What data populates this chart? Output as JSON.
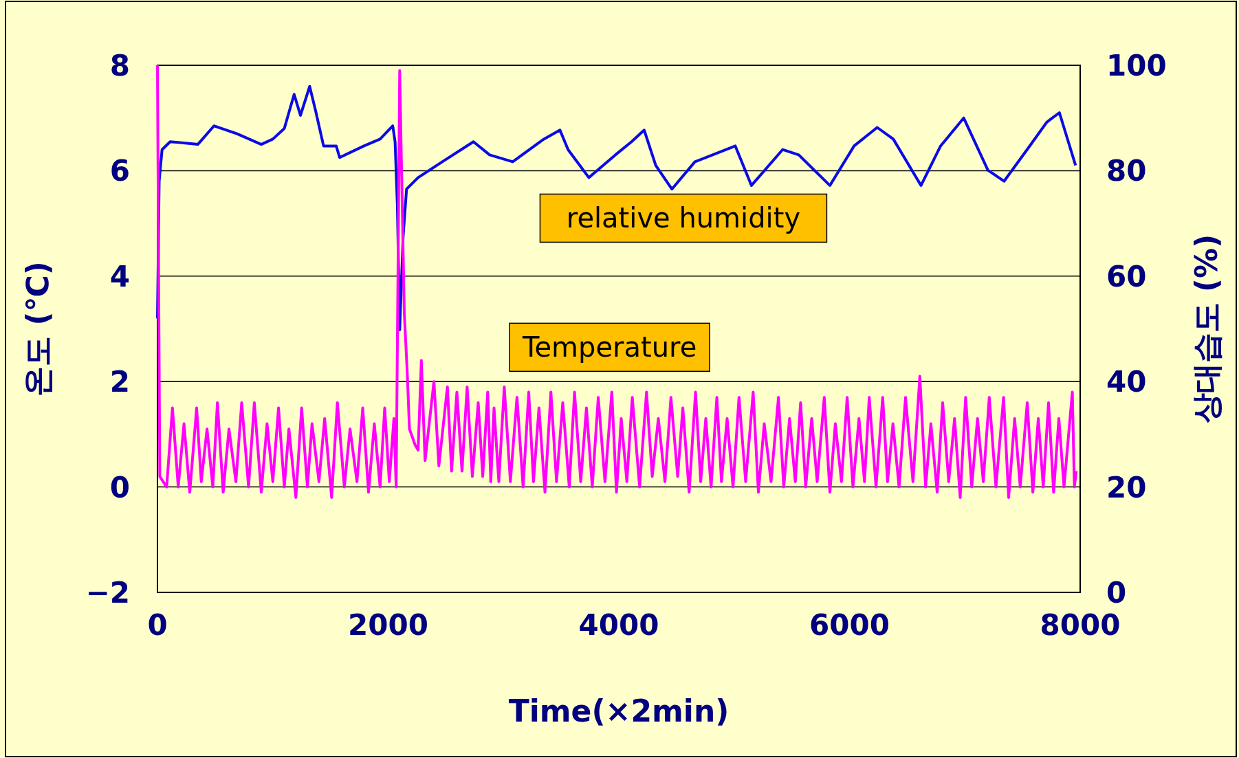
{
  "chart_data": {
    "type": "line",
    "xlabel": "Time(×2min)",
    "ylabel": "온도 (℃)",
    "y2label": "상대습도 (%)",
    "xlim": [
      0,
      8000
    ],
    "xticks": [
      0,
      2000,
      4000,
      6000,
      8000
    ],
    "ylim": [
      -2,
      8
    ],
    "yticks": [
      {
        "value": -2,
        "label": "−2"
      },
      0,
      2,
      4,
      6,
      8
    ],
    "y2lim": [
      0,
      100
    ],
    "y2ticks": [
      0,
      20,
      40,
      60,
      80,
      100
    ],
    "grid": "y",
    "series": [
      {
        "name": "relative humidity",
        "color": "#0a0ae6",
        "axis": "y2",
        "x": [
          0,
          15,
          40,
          110,
          350,
          490,
          690,
          900,
          1000,
          1100,
          1185,
          1240,
          1320,
          1370,
          1440,
          1550,
          1580,
          1790,
          1930,
          2040,
          2060,
          2080,
          2100,
          2130,
          2160,
          2260,
          2470,
          2740,
          2880,
          3080,
          3350,
          3490,
          3560,
          3740,
          3970,
          4110,
          4220,
          4320,
          4460,
          4660,
          5010,
          5150,
          5420,
          5560,
          5830,
          6040,
          6240,
          6380,
          6620,
          6790,
          6990,
          7200,
          7340,
          7540,
          7710,
          7820,
          7960
        ],
        "values": [
          52,
          78,
          84,
          85.5,
          85,
          88.5,
          87,
          85,
          86,
          88,
          94.5,
          90.5,
          96,
          91.5,
          84.7,
          84.7,
          82.5,
          84.7,
          86,
          88.5,
          85.5,
          73.5,
          49.8,
          67.5,
          76.5,
          78.7,
          81.7,
          85.5,
          83,
          81.7,
          86,
          87.7,
          84,
          78.7,
          83,
          85.5,
          87.7,
          81,
          76.5,
          81.7,
          84.7,
          77.2,
          84,
          83,
          77.2,
          84.7,
          88.2,
          86,
          77.2,
          84.7,
          90,
          80.1,
          78,
          84,
          89.2,
          91,
          81
        ]
      },
      {
        "name": "Temperature",
        "color": "#ff00ff",
        "x": [
          0,
          20,
          80,
          130,
          180,
          230,
          280,
          340,
          380,
          430,
          480,
          520,
          570,
          620,
          680,
          730,
          790,
          840,
          900,
          950,
          1000,
          1050,
          1100,
          1140,
          1200,
          1250,
          1300,
          1340,
          1400,
          1450,
          1510,
          1560,
          1620,
          1670,
          1730,
          1780,
          1830,
          1880,
          1930,
          1970,
          2010,
          2050,
          2070,
          2100,
          2140,
          2165,
          2185,
          2233,
          2260,
          2288,
          2320,
          2397,
          2440,
          2514,
          2550,
          2596,
          2640,
          2685,
          2730,
          2781,
          2820,
          2863,
          2890,
          2918,
          2960,
          3007,
          3060,
          3117,
          3170,
          3219,
          3260,
          3308,
          3360,
          3411,
          3460,
          3514,
          3570,
          3616,
          3670,
          3719,
          3770,
          3822,
          3880,
          3939,
          3980,
          4021,
          4070,
          4117,
          4180,
          4240,
          4290,
          4343,
          4400,
          4452,
          4510,
          4555,
          4610,
          4665,
          4710,
          4754,
          4800,
          4850,
          4890,
          4939,
          4990,
          5042,
          5100,
          5165,
          5210,
          5261,
          5320,
          5384,
          5430,
          5480,
          5530,
          5576,
          5620,
          5672,
          5720,
          5781,
          5830,
          5877,
          5930,
          5980,
          6030,
          6082,
          6130,
          6171,
          6230,
          6288,
          6330,
          6377,
          6430,
          6486,
          6550,
          6610,
          6660,
          6706,
          6760,
          6808,
          6860,
          6911,
          6960,
          7007,
          7060,
          7110,
          7160,
          7212,
          7270,
          7336,
          7380,
          7432,
          7480,
          7541,
          7590,
          7637,
          7680,
          7726,
          7770,
          7815,
          7860,
          7932,
          7950,
          7966
        ],
        "values": [
          8.0,
          0.2,
          0.0,
          1.5,
          0.0,
          1.2,
          -0.1,
          1.5,
          0.1,
          1.1,
          0.0,
          1.6,
          -0.1,
          1.1,
          0.1,
          1.6,
          0.0,
          1.6,
          -0.1,
          1.2,
          0.1,
          1.5,
          0.0,
          1.1,
          -0.2,
          1.5,
          0.0,
          1.2,
          0.1,
          1.3,
          -0.2,
          1.6,
          0.0,
          1.1,
          0.1,
          1.5,
          -0.1,
          1.2,
          0.0,
          1.5,
          0.1,
          1.3,
          0.0,
          7.9,
          3.3,
          2.2,
          1.1,
          0.8,
          0.7,
          2.4,
          0.5,
          2.0,
          0.4,
          1.9,
          0.3,
          1.8,
          0.3,
          1.9,
          0.2,
          1.6,
          0.2,
          1.8,
          0.1,
          1.5,
          0.1,
          1.9,
          0.1,
          1.7,
          0.0,
          1.8,
          0.1,
          1.5,
          -0.1,
          1.8,
          0.1,
          1.6,
          0.0,
          1.8,
          0.1,
          1.5,
          0.0,
          1.7,
          0.1,
          1.8,
          -0.1,
          1.3,
          0.1,
          1.7,
          0.0,
          1.8,
          0.2,
          1.3,
          0.1,
          1.7,
          0.2,
          1.5,
          -0.1,
          1.8,
          0.1,
          1.3,
          0.0,
          1.7,
          0.1,
          1.3,
          0.0,
          1.7,
          0.1,
          1.8,
          -0.1,
          1.2,
          0.1,
          1.7,
          0.0,
          1.3,
          0.1,
          1.6,
          0.0,
          1.3,
          0.1,
          1.7,
          -0.1,
          1.2,
          0.1,
          1.7,
          0.0,
          1.3,
          0.1,
          1.7,
          0.0,
          1.7,
          0.1,
          1.2,
          0.0,
          1.7,
          0.1,
          2.1,
          0.0,
          1.2,
          -0.1,
          1.6,
          0.1,
          1.3,
          -0.2,
          1.7,
          0.0,
          1.3,
          0.1,
          1.7,
          0.0,
          1.7,
          -0.2,
          1.3,
          0.0,
          1.6,
          -0.1,
          1.3,
          0.0,
          1.6,
          -0.1,
          1.3,
          0.0,
          1.8,
          0.0,
          0.3
        ]
      }
    ]
  }
}
